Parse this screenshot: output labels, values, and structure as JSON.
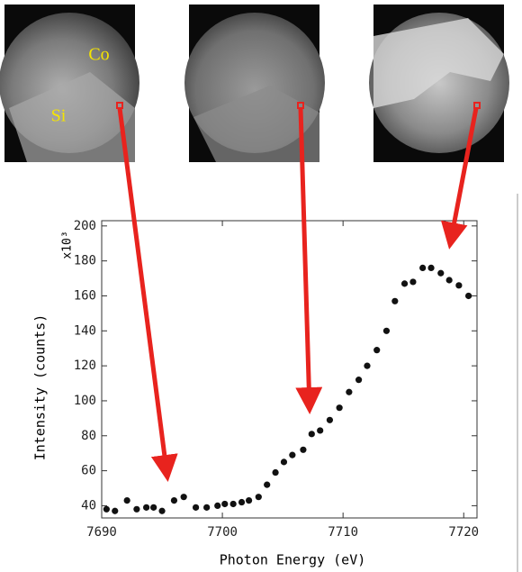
{
  "chart_data": {
    "type": "scatter",
    "image_labels": [
      "Co",
      "Si"
    ],
    "xlabel": "Photon Energy (eV)",
    "ylabel": "Intensity (counts)",
    "y_multiplier": "x10³",
    "x": [
      7690.4,
      7691.1,
      7692.1,
      7692.9,
      7693.7,
      7694.3,
      7695.0,
      7696.0,
      7696.8,
      7697.8,
      7698.7,
      7699.6,
      7700.2,
      7700.9,
      7701.6,
      7702.2,
      7703.0,
      7703.7,
      7704.4,
      7705.1,
      7705.8,
      7706.7,
      7707.4,
      7708.1,
      7708.9,
      7709.7,
      7710.5,
      7711.3,
      7712.0,
      7712.8,
      7713.6,
      7714.3,
      7715.1,
      7715.8,
      7716.6,
      7717.3,
      7718.1,
      7718.8,
      7719.6,
      7720.4
    ],
    "values": [
      38,
      37,
      43,
      38,
      39,
      39,
      37,
      43,
      45,
      39,
      39,
      40,
      41,
      41,
      42,
      43,
      45,
      52,
      59,
      65,
      69,
      72,
      81,
      83,
      89,
      96,
      105,
      112,
      120,
      129,
      140,
      157,
      167,
      168,
      176,
      176,
      173,
      169,
      166,
      160
    ],
    "color": "#111111",
    "xlim": [
      7690,
      7721.1
    ],
    "xticks": [
      7690,
      7700,
      7710,
      7720
    ],
    "ylim": [
      33,
      203
    ],
    "yticks": [
      40,
      60,
      80,
      100,
      120,
      140,
      160,
      180,
      200
    ]
  }
}
